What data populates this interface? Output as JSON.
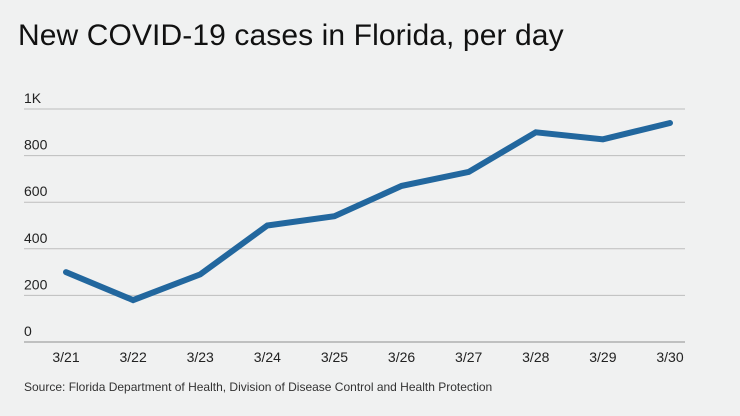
{
  "chart_data": {
    "type": "line",
    "title": "New COVID-19 cases in Florida, per day",
    "xlabel": "",
    "ylabel": "",
    "categories": [
      "3/21",
      "3/22",
      "3/23",
      "3/24",
      "3/25",
      "3/26",
      "3/27",
      "3/28",
      "3/29",
      "3/30"
    ],
    "series": [
      {
        "name": "New cases",
        "values": [
          300,
          180,
          290,
          500,
          540,
          670,
          730,
          900,
          870,
          940
        ],
        "color": "#22679e"
      }
    ],
    "ylim": [
      0,
      1000
    ],
    "yticks": [
      {
        "value": 0,
        "label": "0"
      },
      {
        "value": 200,
        "label": "200"
      },
      {
        "value": 400,
        "label": "400"
      },
      {
        "value": 600,
        "label": "600"
      },
      {
        "value": 800,
        "label": "800"
      },
      {
        "value": 1000,
        "label": "1K"
      }
    ],
    "grid": true,
    "legend": "none",
    "source": "Source: Florida Department of Health, Division of Disease Control and Health Protection"
  }
}
